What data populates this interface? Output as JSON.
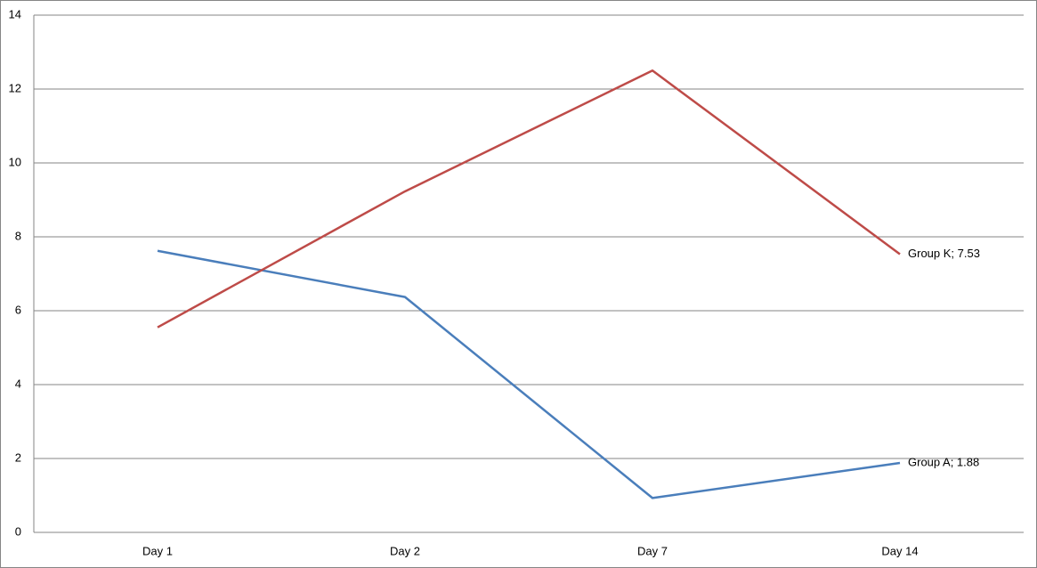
{
  "chart_data": {
    "type": "line",
    "categories": [
      "Day 1",
      "Day 2",
      "Day 7",
      "Day 14"
    ],
    "series": [
      {
        "name": "Group A",
        "color": "#4a7ebb",
        "values": [
          7.62,
          6.37,
          0.93,
          1.88
        ],
        "value_labels": [
          null,
          null,
          null,
          "Group A; 1.88"
        ]
      },
      {
        "name": "Group K",
        "color": "#be4b48",
        "values": [
          5.55,
          9.23,
          12.5,
          7.53
        ],
        "value_labels": [
          null,
          null,
          null,
          "Group K; 7.53"
        ]
      }
    ],
    "ylim": [
      0,
      14
    ],
    "yticks": [
      0,
      2,
      4,
      6,
      8,
      10,
      12,
      14
    ],
    "grid": true
  }
}
